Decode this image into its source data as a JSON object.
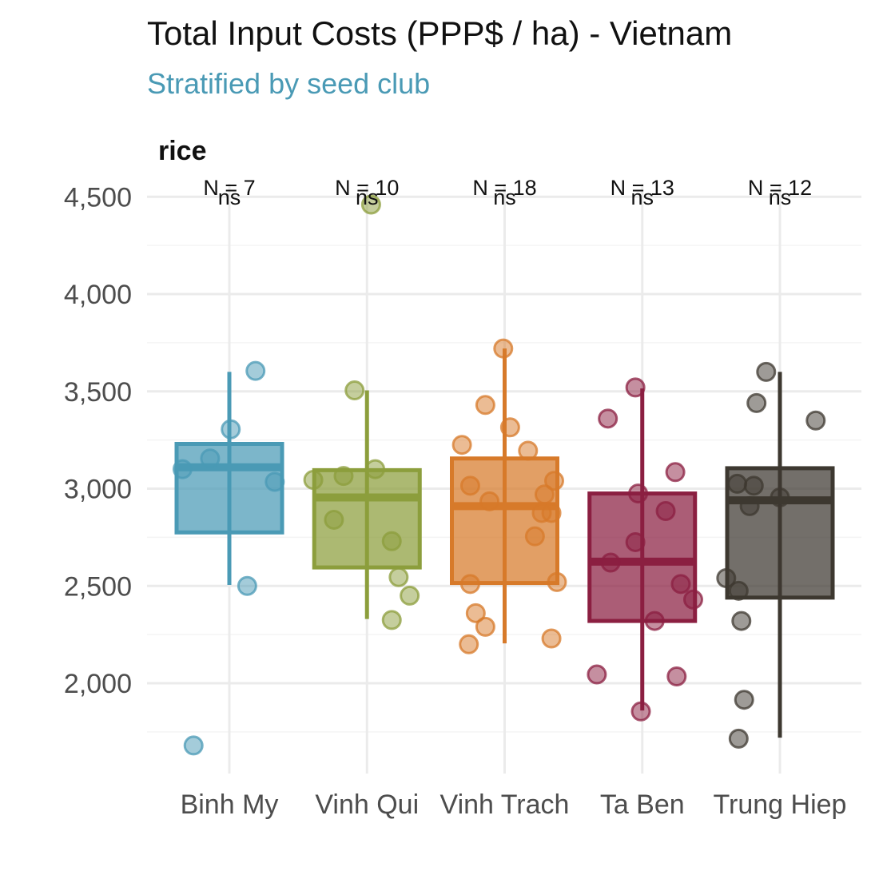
{
  "chart_data": {
    "type": "box",
    "title": "Total Input Costs (PPP$ / ha) - Vietnam",
    "subtitle": "Stratified by seed club",
    "facet": "rice",
    "xlabel": "",
    "ylabel": "",
    "ylim": [
      1620,
      4560
    ],
    "yticks": [
      2000,
      2500,
      3000,
      3500,
      4000,
      4500
    ],
    "ytick_labels": [
      "2,000",
      "2,500",
      "3,000",
      "3,500",
      "4,000",
      "4,500"
    ],
    "grid": true,
    "legend": "none",
    "categories": [
      "Binh My",
      "Vinh Qui",
      "Vinh Trach",
      "Ta Ben",
      "Trung Hiep"
    ],
    "n_labels": [
      "N = 7",
      "N = 10",
      "N = 18",
      "N = 13",
      "N = 12"
    ],
    "significance_labels": [
      "ns",
      "ns",
      "ns",
      "ns",
      "ns"
    ],
    "colors": [
      "#4a9ab5",
      "#8c9e3c",
      "#d77a2a",
      "#8b1f41",
      "#3d3830"
    ],
    "boxes": [
      {
        "lower_whisker": 2505,
        "q1": 2775,
        "median": 3110,
        "q3": 3230,
        "upper_whisker": 3600
      },
      {
        "lower_whisker": 2330,
        "q1": 2595,
        "median": 2955,
        "q3": 3095,
        "upper_whisker": 3505
      },
      {
        "lower_whisker": 2205,
        "q1": 2515,
        "median": 2910,
        "q3": 3155,
        "upper_whisker": 3720
      },
      {
        "lower_whisker": 1860,
        "q1": 2320,
        "median": 2625,
        "q3": 2975,
        "upper_whisker": 3515
      },
      {
        "lower_whisker": 1720,
        "q1": 2440,
        "median": 2940,
        "q3": 3105,
        "upper_whisker": 3600
      }
    ],
    "points": [
      [
        {
          "offset": -0.34,
          "y": 3100
        },
        {
          "offset": 0.19,
          "y": 3605
        },
        {
          "offset": 0.01,
          "y": 3305
        },
        {
          "offset": -0.14,
          "y": 3155
        },
        {
          "offset": 0.33,
          "y": 3035
        },
        {
          "offset": 0.13,
          "y": 2500
        },
        {
          "offset": -0.26,
          "y": 1680
        }
      ],
      [
        {
          "offset": 0.03,
          "y": 4460
        },
        {
          "offset": -0.09,
          "y": 3505
        },
        {
          "offset": 0.06,
          "y": 3100
        },
        {
          "offset": -0.17,
          "y": 3065
        },
        {
          "offset": -0.39,
          "y": 3045
        },
        {
          "offset": -0.24,
          "y": 2840
        },
        {
          "offset": 0.18,
          "y": 2730
        },
        {
          "offset": 0.23,
          "y": 2545
        },
        {
          "offset": 0.31,
          "y": 2450
        },
        {
          "offset": 0.18,
          "y": 2325
        }
      ],
      [
        {
          "offset": -0.01,
          "y": 3720
        },
        {
          "offset": -0.14,
          "y": 3430
        },
        {
          "offset": 0.04,
          "y": 3315
        },
        {
          "offset": -0.31,
          "y": 3225
        },
        {
          "offset": 0.17,
          "y": 3195
        },
        {
          "offset": 0.36,
          "y": 3040
        },
        {
          "offset": -0.25,
          "y": 3015
        },
        {
          "offset": 0.29,
          "y": 2970
        },
        {
          "offset": -0.11,
          "y": 2935
        },
        {
          "offset": 0.27,
          "y": 2875
        },
        {
          "offset": 0.34,
          "y": 2875
        },
        {
          "offset": 0.22,
          "y": 2755
        },
        {
          "offset": 0.38,
          "y": 2520
        },
        {
          "offset": -0.25,
          "y": 2510
        },
        {
          "offset": -0.21,
          "y": 2360
        },
        {
          "offset": -0.14,
          "y": 2290
        },
        {
          "offset": 0.34,
          "y": 2230
        },
        {
          "offset": -0.26,
          "y": 2200
        }
      ],
      [
        {
          "offset": -0.05,
          "y": 3520
        },
        {
          "offset": -0.25,
          "y": 3360
        },
        {
          "offset": 0.24,
          "y": 3085
        },
        {
          "offset": -0.03,
          "y": 2975
        },
        {
          "offset": 0.17,
          "y": 2885
        },
        {
          "offset": -0.05,
          "y": 2725
        },
        {
          "offset": -0.23,
          "y": 2620
        },
        {
          "offset": 0.28,
          "y": 2510
        },
        {
          "offset": 0.37,
          "y": 2430
        },
        {
          "offset": 0.09,
          "y": 2320
        },
        {
          "offset": -0.33,
          "y": 2045
        },
        {
          "offset": 0.25,
          "y": 2035
        },
        {
          "offset": -0.01,
          "y": 1855
        }
      ],
      [
        {
          "offset": -0.1,
          "y": 3600
        },
        {
          "offset": -0.17,
          "y": 3440
        },
        {
          "offset": 0.26,
          "y": 3350
        },
        {
          "offset": -0.31,
          "y": 3025
        },
        {
          "offset": -0.19,
          "y": 3015
        },
        {
          "offset": -0.22,
          "y": 2910
        },
        {
          "offset": 0.0,
          "y": 2955
        },
        {
          "offset": -0.39,
          "y": 2540
        },
        {
          "offset": -0.3,
          "y": 2475
        },
        {
          "offset": -0.28,
          "y": 2320
        },
        {
          "offset": -0.26,
          "y": 1915
        },
        {
          "offset": -0.3,
          "y": 1715
        }
      ]
    ]
  }
}
